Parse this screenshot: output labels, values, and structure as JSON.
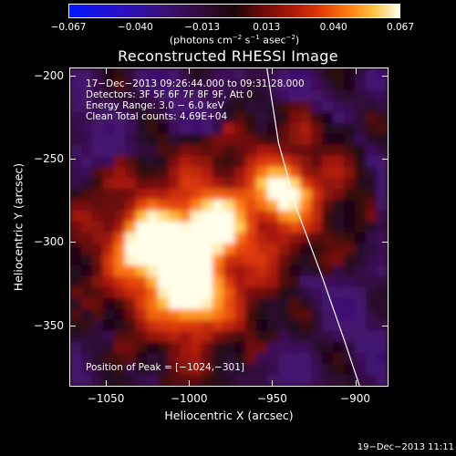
{
  "colorbar": {
    "ticks": [
      "−0.067",
      "−0.040",
      "−0.013",
      "0.013",
      "0.040",
      "0.067"
    ],
    "tick_values": [
      -0.067,
      -0.04,
      -0.013,
      0.013,
      0.04,
      0.067
    ],
    "units_main": "(photons cm",
    "units_sup1": "−2",
    "units_mid1": " s",
    "units_sup2": "−1",
    "units_mid2": " asec",
    "units_sup3": "−2",
    "units_end": ")"
  },
  "title": "Reconstructed RHESSI Image",
  "info": {
    "time": "17−Dec−2013 09:26:44.000 to 09:31:28.000",
    "detectors": "Detectors: 3F 5F 6F 7F 8F 9F, Att 0",
    "energy": "Energy Range: 3.0 − 6.0 keV",
    "clean": "Clean    Total counts: 4.69E+04",
    "peak": "Position of Peak = [−1024,−301]"
  },
  "axes": {
    "xlabel": "Heliocentric X (arcsec)",
    "ylabel": "Heliocentric Y (arcsec)",
    "xticks": [
      "−1050",
      "−1000",
      "−950",
      "−900"
    ],
    "yticks": [
      "−200",
      "−250",
      "−300",
      "−350"
    ],
    "xrange": [
      -1072,
      -880
    ],
    "yrange": [
      -387,
      -195
    ]
  },
  "image": {
    "sources": [
      {
        "x": -1024,
        "y": -301,
        "strength": 1.0
      },
      {
        "x": -986,
        "y": -289,
        "strength": 0.85
      },
      {
        "x": -1005,
        "y": -312,
        "strength": 0.7
      },
      {
        "x": -998,
        "y": -333,
        "strength": 0.85
      },
      {
        "x": -942,
        "y": -270,
        "strength": 0.9
      }
    ],
    "limb_points": [
      [
        -953,
        -195
      ],
      [
        -946,
        -240
      ],
      [
        -935,
        -280
      ],
      [
        -920,
        -320
      ],
      [
        -906,
        -360
      ],
      [
        -897,
        -387
      ]
    ]
  },
  "timestamp": "19−Dec−2013 11:11"
}
